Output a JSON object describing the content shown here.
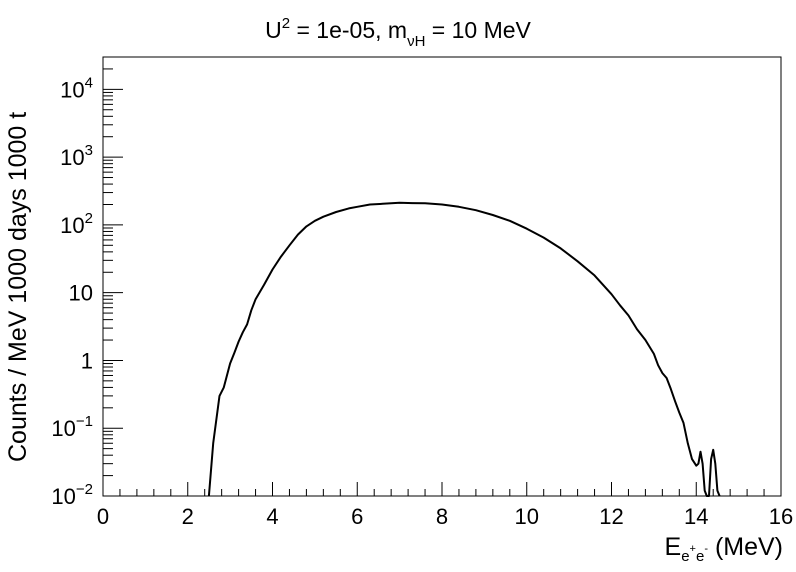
{
  "chart_data": {
    "type": "line",
    "title": {
      "u_base": "U",
      "u_exp": "2",
      "u_value": " = 1e-05, m",
      "m_sub": "νH",
      "m_value": " = 10 MeV"
    },
    "xlabel": {
      "base": "E",
      "sub": "e",
      "sup1": "+",
      "sub2": "e",
      "sup2": "-",
      "unit": " (MeV)"
    },
    "ylabel": "Counts / MeV 1000 days 1000 t",
    "xlim": [
      0,
      16
    ],
    "ylim": [
      0.01,
      30000
    ],
    "yscale": "log",
    "grid": false,
    "x_ticks": [
      "0",
      "2",
      "4",
      "6",
      "8",
      "10",
      "12",
      "14",
      "16"
    ],
    "y_ticks": [
      {
        "value": 0.01,
        "base": "10",
        "exp": "−2"
      },
      {
        "value": 0.1,
        "base": "10",
        "exp": "−1"
      },
      {
        "value": 1,
        "base": "1",
        "exp": ""
      },
      {
        "value": 10,
        "base": "10",
        "exp": ""
      },
      {
        "value": 100,
        "base": "10",
        "exp": "2"
      },
      {
        "value": 1000,
        "base": "10",
        "exp": "3"
      },
      {
        "value": 10000,
        "base": "10",
        "exp": "4"
      }
    ],
    "series": [
      {
        "color": "#000000",
        "x": [
          2.5,
          2.6,
          2.75,
          2.85,
          3.0,
          3.1,
          3.2,
          3.3,
          3.4,
          3.5,
          3.6,
          3.8,
          4.0,
          4.2,
          4.4,
          4.6,
          4.8,
          5.0,
          5.2,
          5.5,
          5.8,
          6.0,
          6.3,
          6.6,
          7.0,
          7.3,
          7.6,
          8.0,
          8.4,
          8.8,
          9.2,
          9.6,
          10.0,
          10.4,
          10.8,
          11.2,
          11.6,
          12.0,
          12.2,
          12.4,
          12.6,
          12.8,
          13.0,
          13.1,
          13.2,
          13.3,
          13.4,
          13.5,
          13.6,
          13.7,
          13.8,
          13.9,
          14.0,
          14.05,
          14.1,
          14.15,
          14.2,
          14.25,
          14.3,
          14.35,
          14.4,
          14.45,
          14.5,
          14.55
        ],
        "y": [
          0.01,
          0.06,
          0.3,
          0.4,
          0.9,
          1.3,
          1.9,
          2.6,
          3.4,
          5.5,
          8.0,
          13,
          22,
          34,
          50,
          72,
          95,
          115,
          132,
          155,
          175,
          185,
          200,
          205,
          212,
          210,
          208,
          200,
          185,
          165,
          140,
          115,
          88,
          65,
          45,
          29,
          18,
          9.5,
          6.5,
          4.6,
          2.9,
          2.0,
          1.25,
          0.85,
          0.65,
          0.55,
          0.38,
          0.25,
          0.17,
          0.12,
          0.06,
          0.035,
          0.028,
          0.03,
          0.045,
          0.03,
          0.012,
          0.01,
          0.01,
          0.035,
          0.048,
          0.03,
          0.012,
          0.01
        ]
      }
    ]
  }
}
